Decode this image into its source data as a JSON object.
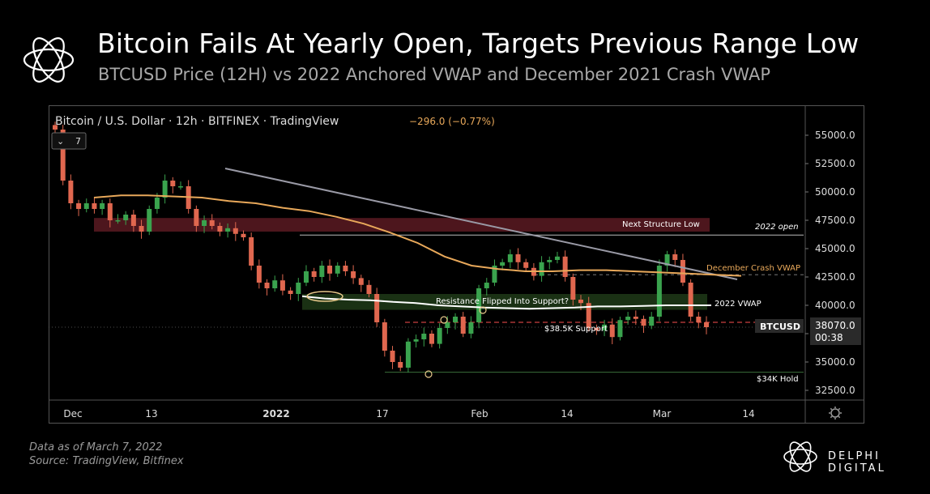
{
  "header": {
    "title": "Bitcoin Fails At Yearly Open, Targets Previous Range Low",
    "subtitle": "BTCUSD Price (12H) vs 2022 Anchored VWAP and December 2021 Crash VWAP"
  },
  "footer": {
    "data_note": "Data as of March  7, 2022",
    "source": "Source: TradingView, Bitfinex",
    "brand": "DELPHI DIGITAL"
  },
  "colors": {
    "up_candle": "#3aa34e",
    "down_candle": "#e0674f",
    "vwap_2022": "#ffffff",
    "vwap_dec_crash": "#e8a85a",
    "trendline": "#9a9aa6",
    "structure_zone": "#5a1a22",
    "support_zone": "#1e3a18",
    "support_dashed": "#c94040",
    "background": "#000000"
  },
  "chart_data": {
    "type": "candlestick",
    "symbol_header": "Bitcoin / U.S. Dollar · 12h · BITFINEX · TradingView",
    "change": "−296.0 (−0.77%)",
    "interval_button": "7",
    "x": [
      "Dec",
      "13",
      "2022",
      "17",
      "Feb",
      "14",
      "Mar",
      "14"
    ],
    "y_ticks": [
      "55000.0",
      "52500.0",
      "50000.0",
      "47500.0",
      "45000.0",
      "42500.0",
      "40000.0",
      "37500.0",
      "35000.0",
      "32500.0"
    ],
    "ylim": [
      31500,
      56500
    ],
    "close_price": [
      55500,
      51000,
      49000,
      48500,
      49000,
      48500,
      49000,
      47500,
      47500,
      48000,
      47000,
      46500,
      48500,
      49500,
      51000,
      50500,
      50500,
      48500,
      47000,
      47500,
      47000,
      46500,
      46800,
      46300,
      46000,
      43500,
      42000,
      41500,
      42200,
      41300,
      41000,
      42000,
      43000,
      42500,
      43500,
      42800,
      43500,
      43000,
      42400,
      41800,
      41000,
      38500,
      36000,
      35000,
      34500,
      36800,
      37000,
      37500,
      36600,
      38000,
      38500,
      39000,
      37500,
      38500,
      41500,
      42000,
      43500,
      43800,
      44500,
      43800,
      43300,
      42600,
      43800,
      44000,
      44300,
      42500,
      40500,
      40200,
      38000,
      37800,
      38300,
      37200,
      38700,
      39000,
      38800,
      38200,
      39000,
      43500,
      44500,
      44000,
      42000,
      39000,
      38500,
      38070
    ],
    "vwap_2022": [
      40800,
      40600,
      40500,
      40450,
      40300,
      40200,
      40000,
      39900,
      39800,
      39750,
      39700,
      39750,
      39800,
      39900,
      39900,
      39950,
      40000,
      40000,
      40000
    ],
    "vwap_dec_crash": [
      49500,
      49700,
      49700,
      49600,
      49500,
      49200,
      49000,
      48600,
      48300,
      47800,
      47200,
      46400,
      45500,
      44300,
      43500,
      43200,
      43000,
      43000,
      43100,
      43100,
      43000,
      42900,
      42800,
      42700,
      42600
    ],
    "levels": {
      "next_structure_low_zone": [
        46500,
        47700
      ],
      "open_2022": 46200,
      "support_38_5k": 38500,
      "hold_34k": 34100,
      "resistance_to_support_zone": [
        39600,
        41000
      ]
    },
    "annotations": {
      "structure": "Next Structure Low",
      "open_2022": "2022 open",
      "december_vwap": "December Crash VWAP",
      "vwap_2022": "2022 VWAP",
      "resistance_flip": "Resistance Flipped Into Support?",
      "support": "$38.5K Support",
      "hold": "$34K Hold"
    },
    "price_tag": "BTCUSD",
    "last_price": "38070.0",
    "countdown": "00:38"
  }
}
